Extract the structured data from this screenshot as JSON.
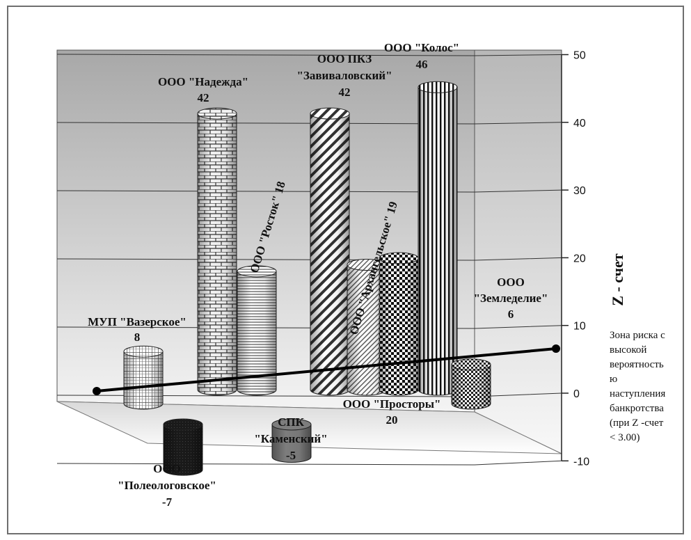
{
  "chart_data": {
    "type": "bar",
    "title": "",
    "xlabel": "",
    "ylabel": "Z - счет",
    "ylim": [
      -10,
      50
    ],
    "yticks": [
      "-10",
      "0",
      "10",
      "20",
      "30",
      "40",
      "50"
    ],
    "grid": true,
    "threshold": {
      "value": 3.0
    },
    "annotation": [
      "Зона риска с",
      "высокой",
      "вероятность",
      "ю",
      "наступления",
      "банкротства",
      "(при Z -счет",
      "< 3.00)"
    ],
    "series": [
      {
        "name_lines": [
          "МУП \"Вазерское\"",
          "8"
        ],
        "value": 8,
        "pattern": "grid"
      },
      {
        "name_lines": [
          "ООО",
          "\"Полеологовское\"",
          "-7"
        ],
        "value": -7,
        "pattern": "dark"
      },
      {
        "name_lines": [
          "ООО  \"Надежда\"",
          "42"
        ],
        "value": 42,
        "pattern": "brick"
      },
      {
        "name_lines": [
          "ООО \"Росток\" 18"
        ],
        "value": 18,
        "pattern": "hlines"
      },
      {
        "name_lines": [
          "СПК",
          "\"Каменский\"",
          "-5"
        ],
        "value": -5,
        "pattern": "gray"
      },
      {
        "name_lines": [
          "ООО ПКЗ",
          "\"Завиваловский\"",
          "42"
        ],
        "value": 42,
        "pattern": "diag"
      },
      {
        "name_lines": [
          "ООО \"Архангельское\" 19"
        ],
        "value": 19,
        "pattern": "diagfine"
      },
      {
        "name_lines": [
          "ООО  \"Просторы\"",
          "20"
        ],
        "value": 20,
        "pattern": "checker"
      },
      {
        "name_lines": [
          "ООО  \"Колос\"",
          "46"
        ],
        "value": 46,
        "pattern": "vlines"
      },
      {
        "name_lines": [
          "ООО",
          "\"Земледелие\"",
          "6"
        ],
        "value": 6,
        "pattern": "smallcheck"
      }
    ]
  }
}
